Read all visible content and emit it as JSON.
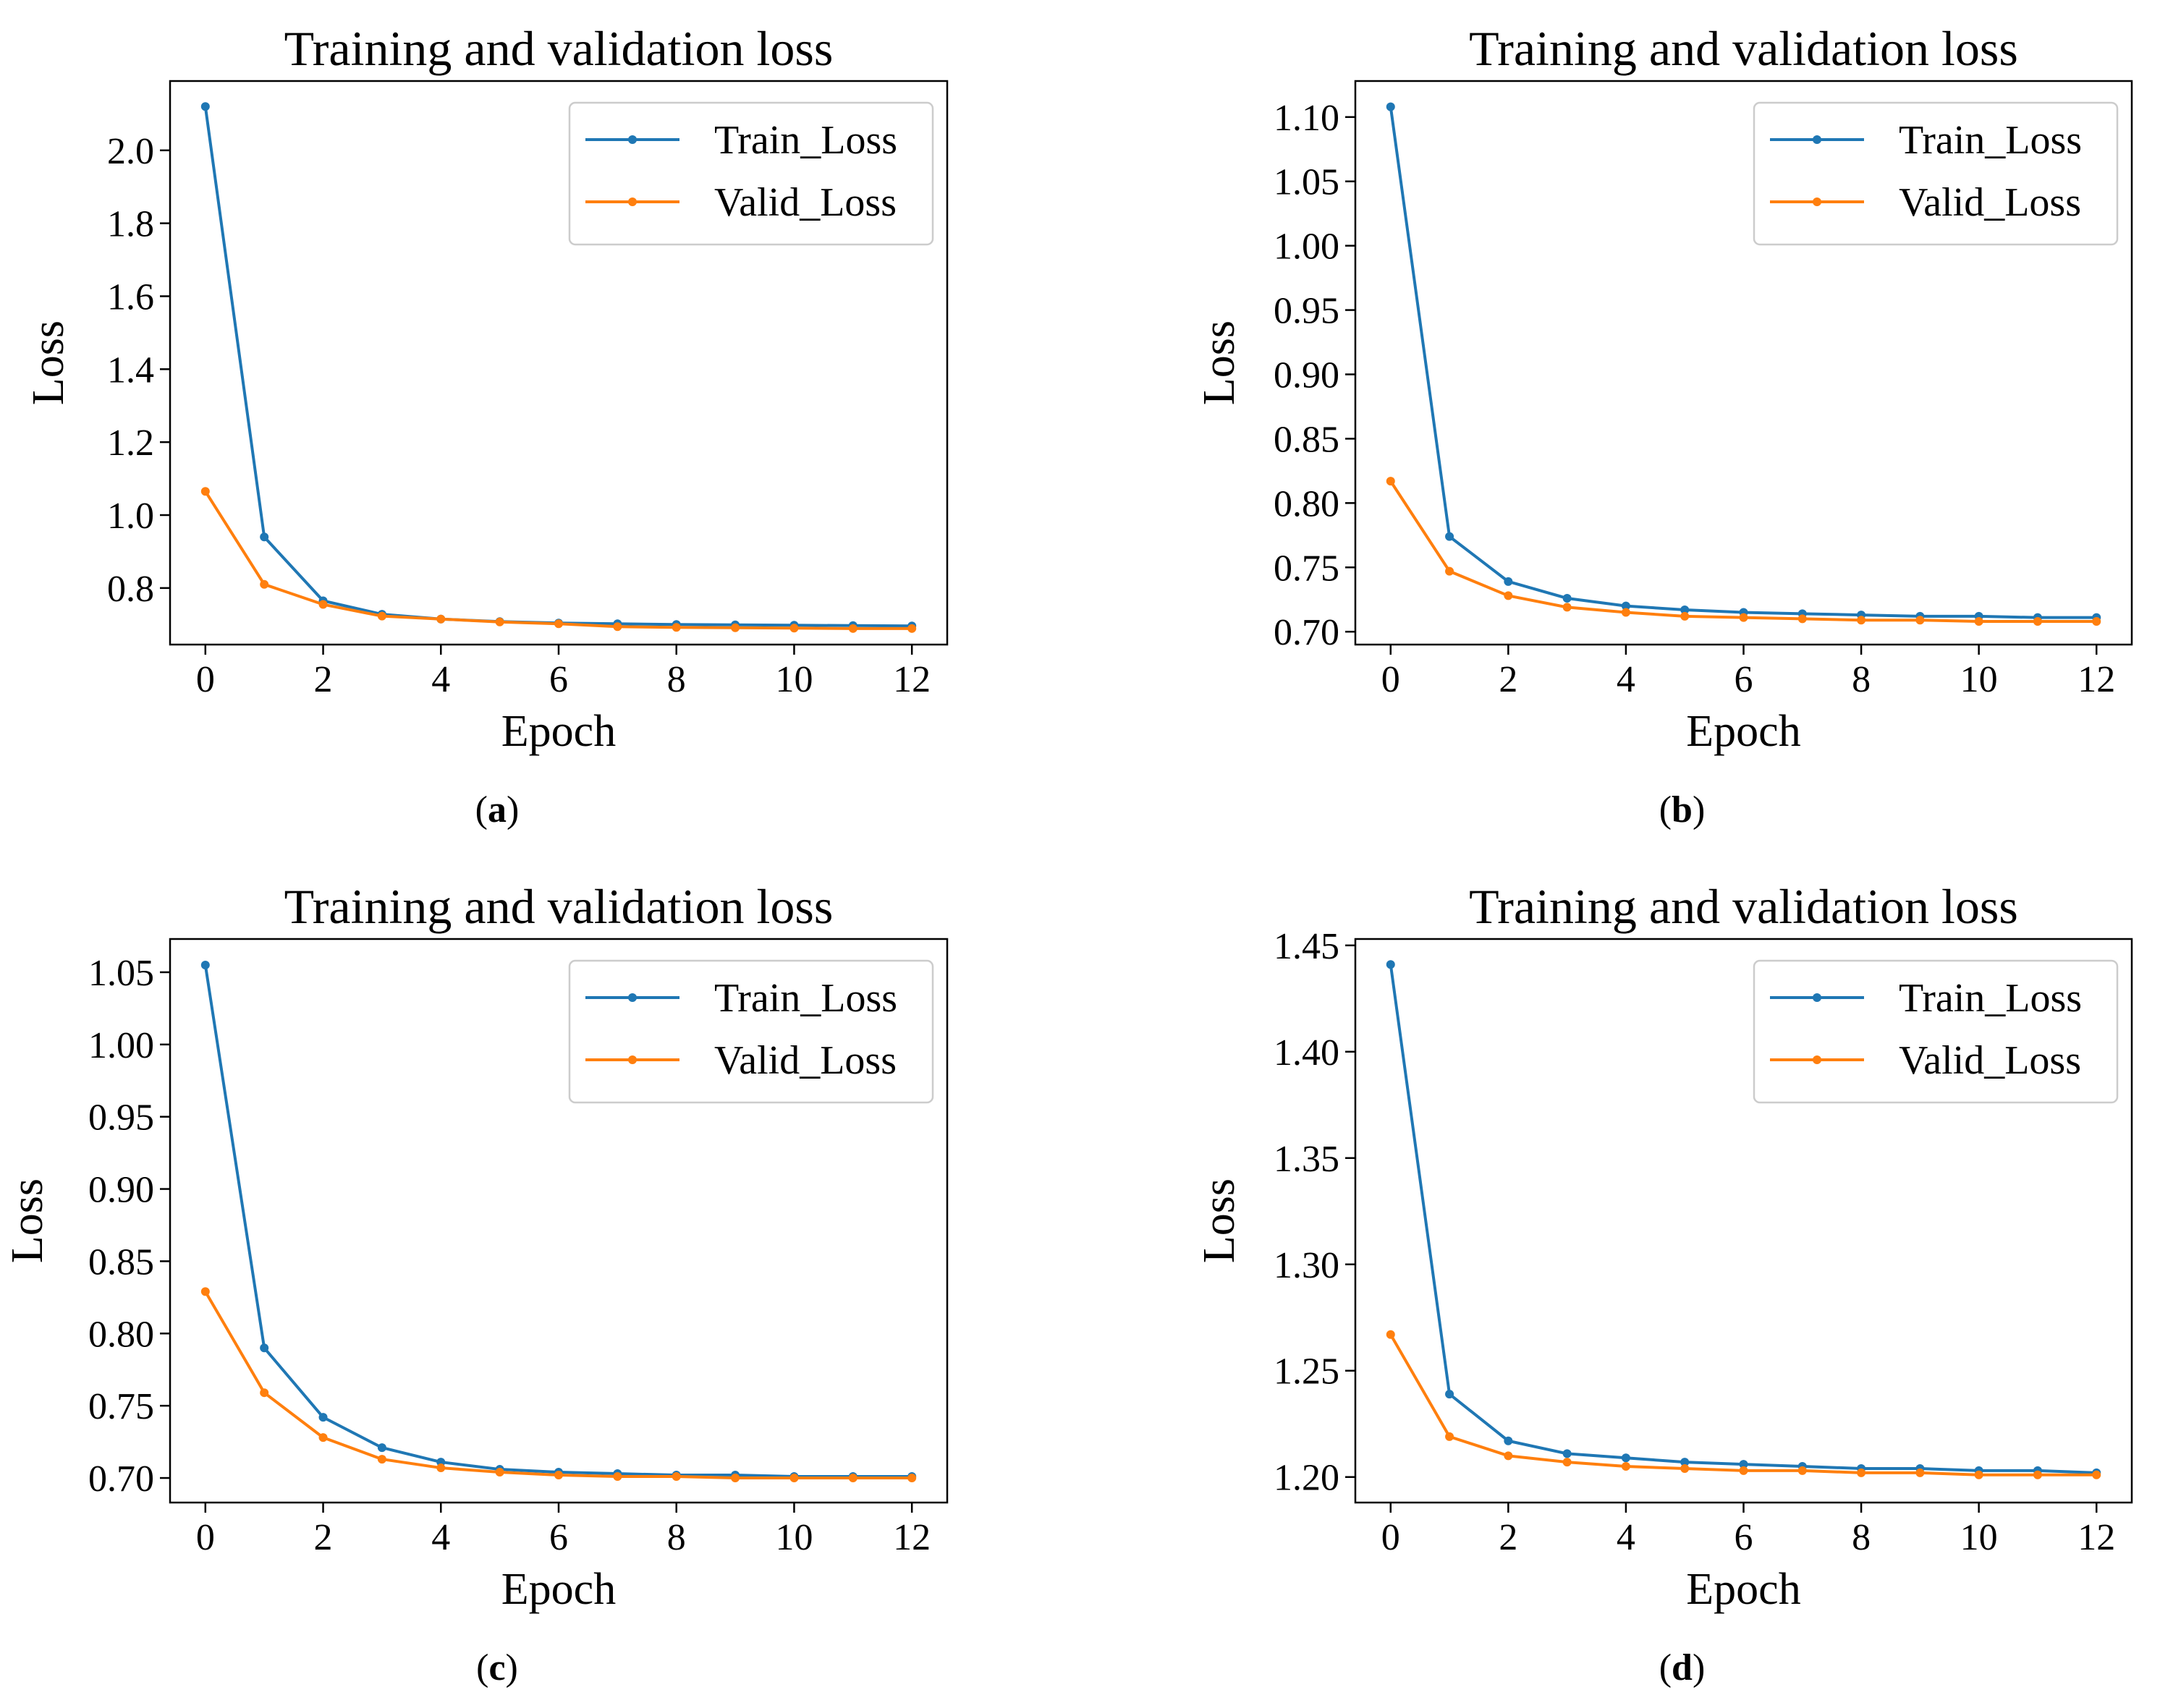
{
  "colors": {
    "train": "#1f77b4",
    "valid": "#ff7f0e"
  },
  "chart_data": [
    {
      "type": "line",
      "panel": "a",
      "caption": "(a)",
      "title": "Training and validation loss",
      "xlabel": "Epoch",
      "ylabel": "Loss",
      "xlim": [
        -0.6,
        12.6
      ],
      "ylim": [
        0.645,
        2.19
      ],
      "xticks": [
        0,
        2,
        4,
        6,
        8,
        10,
        12
      ],
      "xtick_labels": [
        "0",
        "2",
        "4",
        "6",
        "8",
        "10",
        "12"
      ],
      "yticks": [
        0.8,
        1.0,
        1.2,
        1.4,
        1.6,
        1.8,
        2.0
      ],
      "ytick_labels": [
        "0.8",
        "1.0",
        "1.2",
        "1.4",
        "1.6",
        "1.8",
        "2.0"
      ],
      "legend_position": "upper right",
      "x": [
        0,
        1,
        2,
        3,
        4,
        5,
        6,
        7,
        8,
        9,
        10,
        11,
        12
      ],
      "series": [
        {
          "name": "Train_Loss",
          "values": [
            2.12,
            0.94,
            0.765,
            0.728,
            0.715,
            0.708,
            0.704,
            0.702,
            0.7,
            0.699,
            0.698,
            0.697,
            0.696
          ]
        },
        {
          "name": "Valid_Loss",
          "values": [
            1.065,
            0.81,
            0.755,
            0.723,
            0.715,
            0.707,
            0.702,
            0.694,
            0.692,
            0.691,
            0.69,
            0.689,
            0.689
          ]
        }
      ]
    },
    {
      "type": "line",
      "panel": "b",
      "caption": "(b)",
      "title": "Training and validation loss",
      "xlabel": "Epoch",
      "ylabel": "Loss",
      "xlim": [
        -0.6,
        12.6
      ],
      "ylim": [
        0.69,
        1.128
      ],
      "xticks": [
        0,
        2,
        4,
        6,
        8,
        10,
        12
      ],
      "xtick_labels": [
        "0",
        "2",
        "4",
        "6",
        "8",
        "10",
        "12"
      ],
      "yticks": [
        0.7,
        0.75,
        0.8,
        0.85,
        0.9,
        0.95,
        1.0,
        1.05,
        1.1
      ],
      "ytick_labels": [
        "0.70",
        "0.75",
        "0.80",
        "0.85",
        "0.90",
        "0.95",
        "1.00",
        "1.05",
        "1.10"
      ],
      "legend_position": "upper right",
      "x": [
        0,
        1,
        2,
        3,
        4,
        5,
        6,
        7,
        8,
        9,
        10,
        11,
        12
      ],
      "series": [
        {
          "name": "Train_Loss",
          "values": [
            1.108,
            0.774,
            0.739,
            0.726,
            0.72,
            0.717,
            0.715,
            0.714,
            0.713,
            0.712,
            0.712,
            0.711,
            0.711
          ]
        },
        {
          "name": "Valid_Loss",
          "values": [
            0.817,
            0.747,
            0.728,
            0.719,
            0.715,
            0.712,
            0.711,
            0.71,
            0.709,
            0.709,
            0.708,
            0.708,
            0.708
          ]
        }
      ]
    },
    {
      "type": "line",
      "panel": "c",
      "caption": "(c)",
      "title": "Training and validation loss",
      "xlabel": "Epoch",
      "ylabel": "Loss",
      "xlim": [
        -0.6,
        12.6
      ],
      "ylim": [
        0.683,
        1.073
      ],
      "xticks": [
        0,
        2,
        4,
        6,
        8,
        10,
        12
      ],
      "xtick_labels": [
        "0",
        "2",
        "4",
        "6",
        "8",
        "10",
        "12"
      ],
      "yticks": [
        0.7,
        0.75,
        0.8,
        0.85,
        0.9,
        0.95,
        1.0,
        1.05
      ],
      "ytick_labels": [
        "0.70",
        "0.75",
        "0.80",
        "0.85",
        "0.90",
        "0.95",
        "1.00",
        "1.05"
      ],
      "legend_position": "upper right",
      "x": [
        0,
        1,
        2,
        3,
        4,
        5,
        6,
        7,
        8,
        9,
        10,
        11,
        12
      ],
      "series": [
        {
          "name": "Train_Loss",
          "values": [
            1.055,
            0.79,
            0.742,
            0.721,
            0.711,
            0.706,
            0.704,
            0.703,
            0.702,
            0.702,
            0.701,
            0.701,
            0.701
          ]
        },
        {
          "name": "Valid_Loss",
          "values": [
            0.829,
            0.759,
            0.728,
            0.713,
            0.707,
            0.704,
            0.702,
            0.701,
            0.701,
            0.7,
            0.7,
            0.7,
            0.7
          ]
        }
      ]
    },
    {
      "type": "line",
      "panel": "d",
      "caption": "(d)",
      "title": "Training and validation loss",
      "xlabel": "Epoch",
      "ylabel": "Loss",
      "xlim": [
        -0.6,
        12.6
      ],
      "ylim": [
        1.188,
        1.453
      ],
      "xticks": [
        0,
        2,
        4,
        6,
        8,
        10,
        12
      ],
      "xtick_labels": [
        "0",
        "2",
        "4",
        "6",
        "8",
        "10",
        "12"
      ],
      "yticks": [
        1.2,
        1.25,
        1.3,
        1.35,
        1.4,
        1.45
      ],
      "ytick_labels": [
        "1.20",
        "1.25",
        "1.30",
        "1.35",
        "1.40",
        "1.45"
      ],
      "legend_position": "upper right",
      "x": [
        0,
        1,
        2,
        3,
        4,
        5,
        6,
        7,
        8,
        9,
        10,
        11,
        12
      ],
      "series": [
        {
          "name": "Train_Loss",
          "values": [
            1.441,
            1.239,
            1.217,
            1.211,
            1.209,
            1.207,
            1.206,
            1.205,
            1.204,
            1.204,
            1.203,
            1.203,
            1.202
          ]
        },
        {
          "name": "Valid_Loss",
          "values": [
            1.267,
            1.219,
            1.21,
            1.207,
            1.205,
            1.204,
            1.203,
            1.203,
            1.202,
            1.202,
            1.201,
            1.201,
            1.201
          ]
        }
      ]
    }
  ]
}
